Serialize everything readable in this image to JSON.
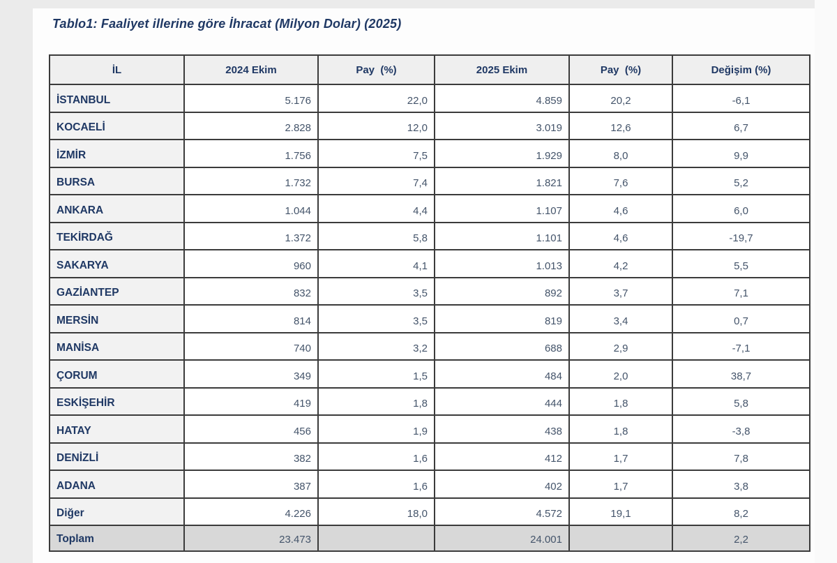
{
  "page": {
    "title": "Tablo1: Faaliyet illerine göre İhracat (Milyon Dolar) (2025)"
  },
  "table": {
    "columns": [
      "İL",
      "2024 Ekim",
      "Pay  (%)",
      "2025 Ekim",
      "Pay  (%)",
      "Değişim (%)"
    ],
    "rows": [
      [
        "İSTANBUL",
        "5.176",
        "22,0",
        "4.859",
        "20,2",
        "-6,1"
      ],
      [
        "KOCAELİ",
        "2.828",
        "12,0",
        "3.019",
        "12,6",
        "6,7"
      ],
      [
        "İZMİR",
        "1.756",
        "7,5",
        "1.929",
        "8,0",
        "9,9"
      ],
      [
        "BURSA",
        "1.732",
        "7,4",
        "1.821",
        "7,6",
        "5,2"
      ],
      [
        "ANKARA",
        "1.044",
        "4,4",
        "1.107",
        "4,6",
        "6,0"
      ],
      [
        "TEKİRDAĞ",
        "1.372",
        "5,8",
        "1.101",
        "4,6",
        "-19,7"
      ],
      [
        "SAKARYA",
        "960",
        "4,1",
        "1.013",
        "4,2",
        "5,5"
      ],
      [
        "GAZİANTEP",
        "832",
        "3,5",
        "892",
        "3,7",
        "7,1"
      ],
      [
        "MERSİN",
        "814",
        "3,5",
        "819",
        "3,4",
        "0,7"
      ],
      [
        "MANİSA",
        "740",
        "3,2",
        "688",
        "2,9",
        "-7,1"
      ],
      [
        "ÇORUM",
        "349",
        "1,5",
        "484",
        "2,0",
        "38,7"
      ],
      [
        "ESKİŞEHİR",
        "419",
        "1,8",
        "444",
        "1,8",
        "5,8"
      ],
      [
        "HATAY",
        "456",
        "1,9",
        "438",
        "1,8",
        "-3,8"
      ],
      [
        "DENİZLİ",
        "382",
        "1,6",
        "412",
        "1,7",
        "7,8"
      ],
      [
        "ADANA",
        "387",
        "1,6",
        "402",
        "1,7",
        "3,8"
      ],
      [
        "Diğer",
        "4.226",
        "18,0",
        "4.572",
        "19,1",
        "8,2"
      ]
    ],
    "total": [
      "Toplam",
      "23.473",
      "",
      "24.001",
      "",
      "2,2"
    ]
  },
  "colors": {
    "navy": "#1f3864",
    "slate": "#44546a",
    "border": "#3b3b3b",
    "headerBg": "#efefef",
    "ilBg": "#f2f2f2",
    "totalBg": "#d8d8d8",
    "pageBg": "#ebebeb",
    "cardBg": "#fdfdfd"
  }
}
